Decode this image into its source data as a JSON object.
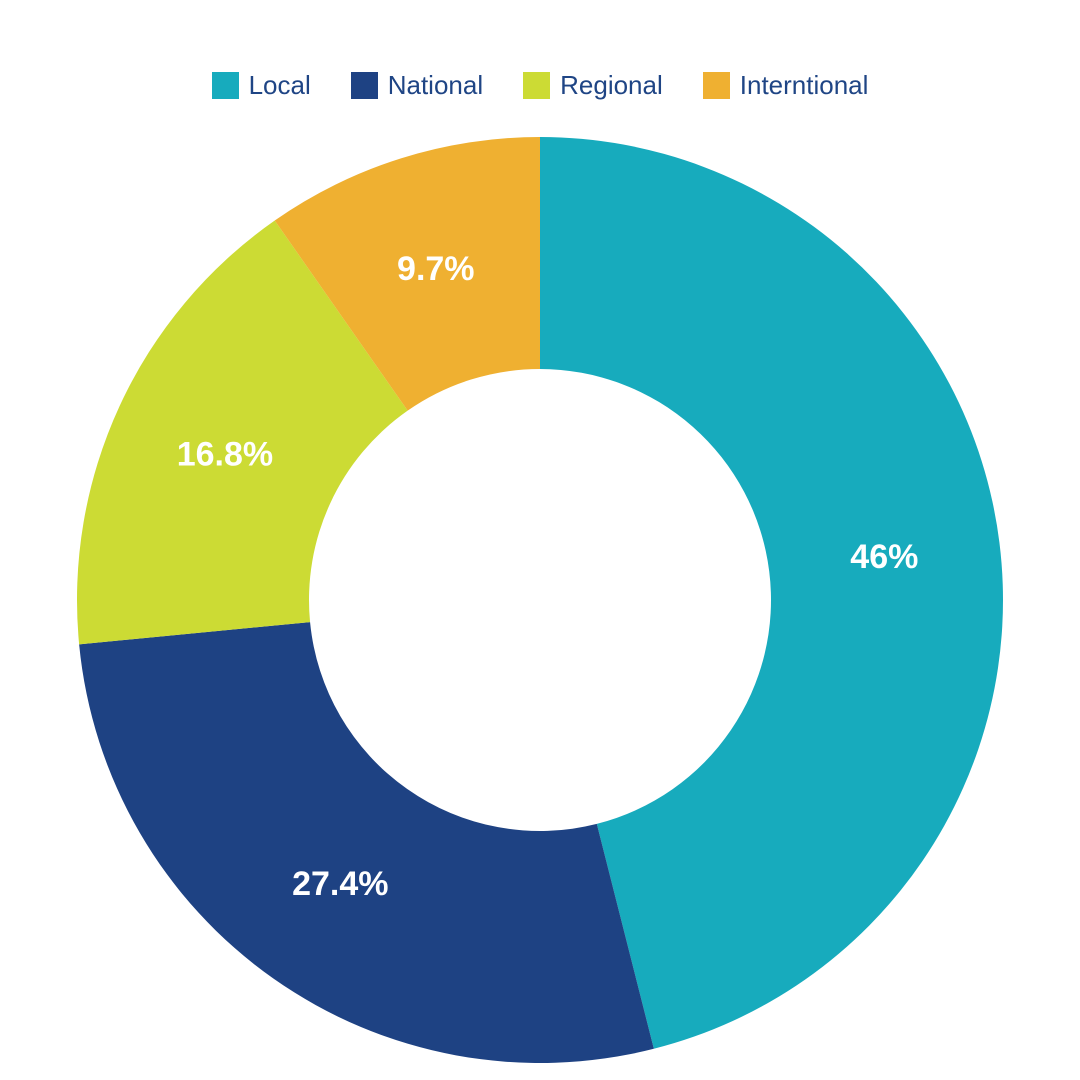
{
  "chart_data": {
    "type": "pie",
    "variant": "donut",
    "title": "",
    "categories": [
      "Local",
      "National",
      "Regional",
      "Interntional"
    ],
    "values": [
      46,
      27.4,
      16.8,
      9.7
    ],
    "data_labels": [
      "46%",
      "27.4%",
      "16.8%",
      "9.7%"
    ],
    "colors": [
      "#17abbd",
      "#1e4283",
      "#ccdb34",
      "#efb031"
    ],
    "legend_position": "top-center",
    "start_angle": "12 o'clock",
    "direction": "clockwise"
  }
}
